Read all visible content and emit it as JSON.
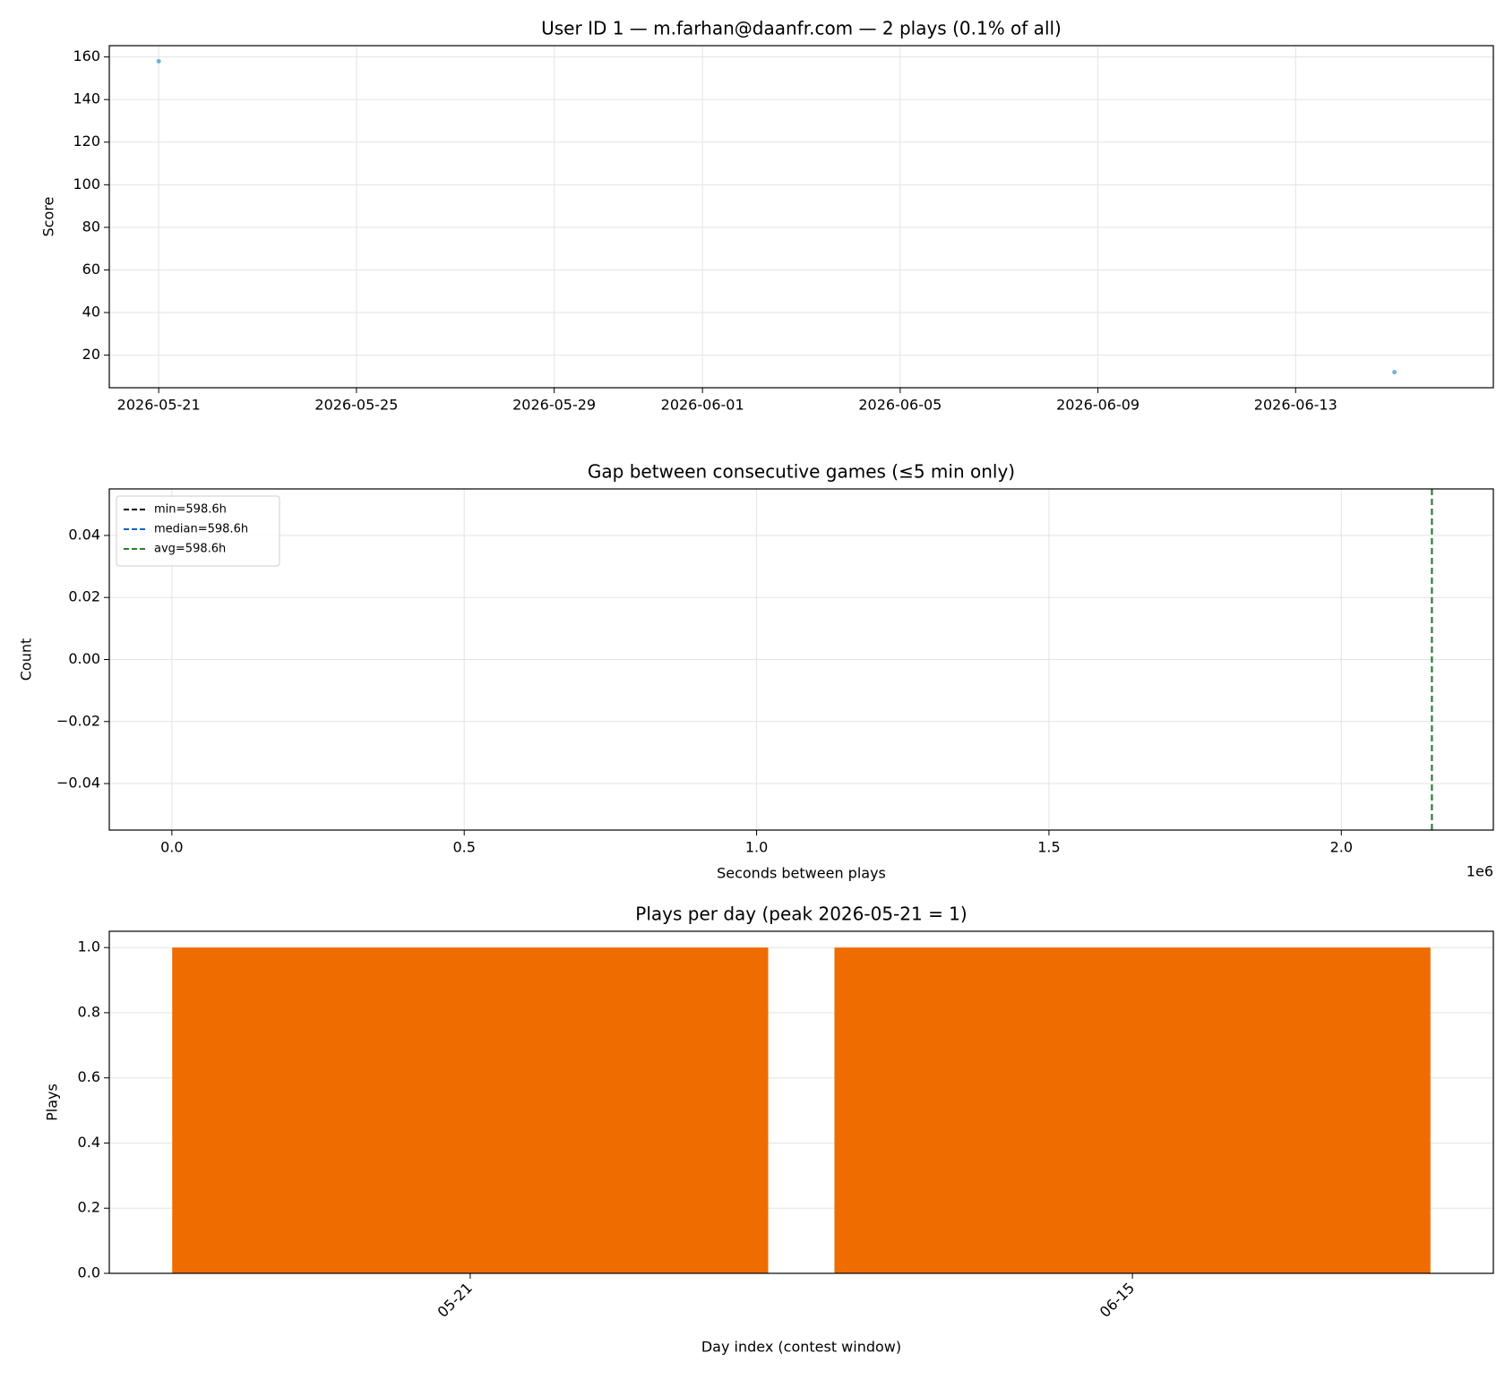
{
  "chart_data": [
    {
      "type": "scatter",
      "title": "User ID 1 — m.farhan@daanfr.com — 2 plays (0.1% of all)",
      "ylabel": "Score",
      "x": [
        "2026-05-21",
        "2026-06-15"
      ],
      "values": [
        158,
        12
      ],
      "color": "#5ba4cf",
      "xlim": [
        "2026-05-20",
        "2026-06-17"
      ],
      "xticks": [
        "2026-05-21",
        "2026-05-25",
        "2026-05-29",
        "2026-06-01",
        "2026-06-05",
        "2026-06-09",
        "2026-06-13"
      ],
      "ylim": [
        4.7,
        165.3
      ],
      "yticks": [
        20,
        40,
        60,
        80,
        100,
        120,
        140,
        160
      ],
      "grid": true
    },
    {
      "type": "histogram",
      "title": "Gap between consecutive games (≤5 min only)",
      "xlabel": "Seconds between plays",
      "ylabel": "Count",
      "x_offset_label": "1e6",
      "lines": [
        {
          "name": "min=598.6h",
          "color": "#000000",
          "value": 2154960
        },
        {
          "name": "median=598.6h",
          "color": "#1565c0",
          "value": 2154960
        },
        {
          "name": "avg=598.6h",
          "color": "#2e7d32",
          "value": 2154960
        }
      ],
      "xlim": [
        -107000,
        2260000
      ],
      "xticks": [
        {
          "value": 0,
          "label": "0.0"
        },
        {
          "value": 500000,
          "label": "0.5"
        },
        {
          "value": 1000000,
          "label": "1.0"
        },
        {
          "value": 1500000,
          "label": "1.5"
        },
        {
          "value": 2000000,
          "label": "2.0"
        }
      ],
      "ylim": [
        -0.055,
        0.055
      ],
      "yticks": [
        {
          "value": -0.04,
          "label": "−0.04"
        },
        {
          "value": -0.02,
          "label": "−0.02"
        },
        {
          "value": 0,
          "label": "0.00"
        },
        {
          "value": 0.02,
          "label": "0.02"
        },
        {
          "value": 0.04,
          "label": "0.04"
        }
      ],
      "grid": true,
      "legend": "upper left"
    },
    {
      "type": "bar",
      "title": "Plays per day (peak 2026-05-21 = 1)",
      "xlabel": "Day index (contest window)",
      "ylabel": "Plays",
      "categories": [
        "05-21",
        "06-15"
      ],
      "values": [
        1,
        1
      ],
      "color": "#ef6c00",
      "ylim": [
        0,
        1.05
      ],
      "yticks": [
        {
          "value": 0,
          "label": "0.0"
        },
        {
          "value": 0.2,
          "label": "0.2"
        },
        {
          "value": 0.4,
          "label": "0.4"
        },
        {
          "value": 0.6,
          "label": "0.6"
        },
        {
          "value": 0.8,
          "label": "0.8"
        },
        {
          "value": 1,
          "label": "1.0"
        }
      ],
      "grid": true
    }
  ]
}
